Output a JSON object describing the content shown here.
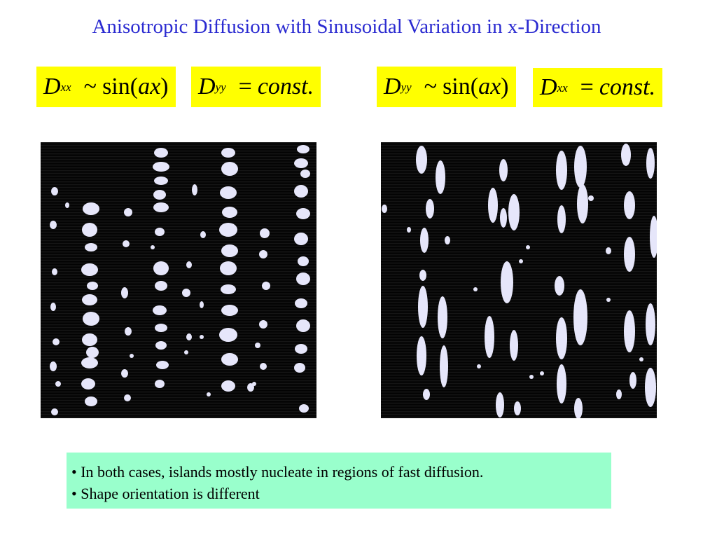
{
  "title": "Anisotropic Diffusion with Sinusoidal Variation in x-Direction",
  "equations": {
    "left_1": {
      "var": "D",
      "sub": "xx",
      "op": "~",
      "func": "sin",
      "lparen": "(",
      "arg": "ax",
      "rparen": ")"
    },
    "left_2": {
      "var": "D",
      "sub": "yy",
      "op": "=",
      "rhs": "const."
    },
    "right_1": {
      "var": "D",
      "sub": "yy",
      "op": "~",
      "func": "sin",
      "lparen": "(",
      "arg": "ax",
      "rparen": ")"
    },
    "right_2": {
      "var": "D",
      "sub": "xx",
      "op": "=",
      "rhs": "const."
    }
  },
  "notes": [
    "• In both cases, islands mostly nucleate in regions of fast diffusion.",
    "• Shape orientation is different"
  ],
  "colors": {
    "title": "#2b2bd1",
    "equation_bg": "#ffff00",
    "note_bg": "#99ffcc",
    "island": "#e6e6fa",
    "panel_bg": "#000000"
  }
}
